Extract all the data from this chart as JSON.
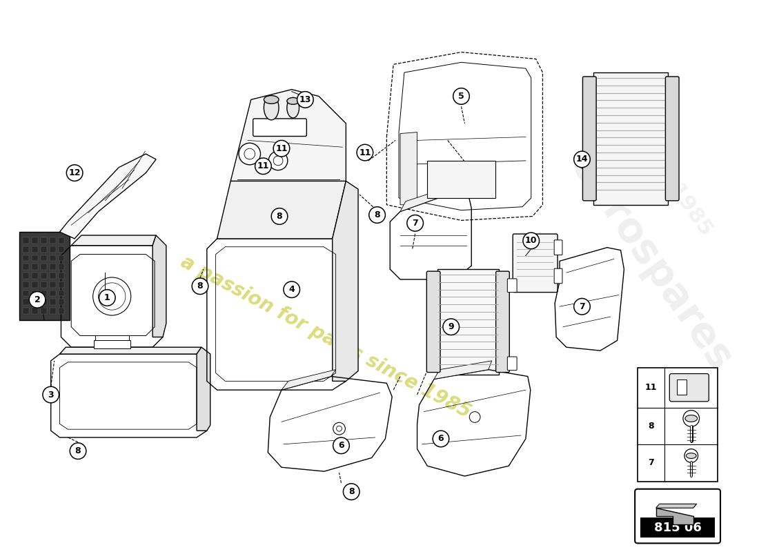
{
  "background_color": "#ffffff",
  "watermark_text": "a passion for parts since 1985",
  "watermark_color": "#d8d870",
  "logo_color": "#cccccc",
  "part_number": "815 06",
  "lw": 1.0,
  "callout_r": 12,
  "callout_fs": 9
}
